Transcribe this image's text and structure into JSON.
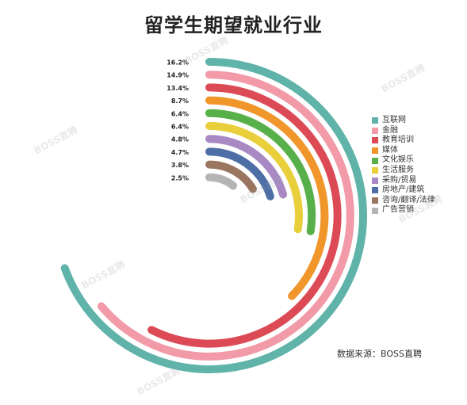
{
  "title": "留学生期望就业行业",
  "source": "数据来源：BOSS直聘",
  "watermark": "BOSS直聘",
  "chart_data": {
    "type": "radial-bar",
    "unit": "%",
    "categories": [
      "互联网",
      "金融",
      "教育培训",
      "媒体",
      "文化娱乐",
      "生活服务",
      "采购/贸易",
      "房地产/建筑",
      "咨询/翻译/法律",
      "广告营销"
    ],
    "values": [
      16.2,
      14.9,
      13.4,
      8.7,
      6.4,
      6.4,
      4.8,
      4.7,
      3.8,
      2.5
    ],
    "labels": [
      "16.2%",
      "14.9%",
      "13.4%",
      "8.7%",
      "6.4%",
      "6.4%",
      "4.8%",
      "4.7%",
      "3.8%",
      "2.5%"
    ],
    "colors": [
      "#5fb3a9",
      "#f29aa8",
      "#dc4a55",
      "#f0962a",
      "#58b04a",
      "#e9cf3c",
      "#a989c4",
      "#4e6fa6",
      "#9a7560",
      "#b4b4b4"
    ],
    "legend_position": "right"
  }
}
